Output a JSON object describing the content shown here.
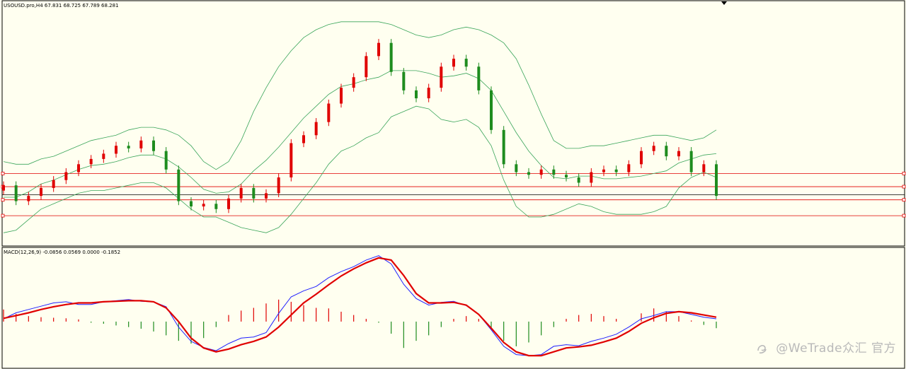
{
  "main_pane": {
    "symbol_label": "USOUSD.pro,H4",
    "ohlc_label": "67.831 68.725 67.789 68.281"
  },
  "macd_pane": {
    "label": "MACD(12,26,9) -0.0856 0.0569 0.0000 -0.1852"
  },
  "watermark": "@WeTrade众汇 官方",
  "colors": {
    "background": "#fffff0",
    "bull_candle": "#e00000",
    "bear_candle": "#1e8c1e",
    "bollinger": "#3aa55a",
    "level_lines": "#e00000",
    "price_line": "#000000",
    "macd_line": "#2020ff",
    "signal_line": "#e00000",
    "hist_positive": "#e00000",
    "hist_negative": "#1e8c1e"
  },
  "chart_data": [
    {
      "type": "candlestick",
      "series": [
        {
          "name": "price",
          "y": [
            68.1,
            67.5,
            67.7,
            68.0,
            68.3,
            68.6,
            68.9,
            69.1,
            69.3,
            69.6,
            69.5,
            69.8,
            69.4,
            68.7,
            67.5,
            67.3,
            67.4,
            67.2,
            67.6,
            68.0,
            67.6,
            67.8,
            68.4,
            69.7,
            70.0,
            70.5,
            71.2,
            71.8,
            72.2,
            73.0,
            73.5,
            72.4,
            71.7,
            71.4,
            71.8,
            72.6,
            72.9,
            72.6,
            71.7,
            70.2,
            68.9,
            68.6,
            68.5,
            68.7,
            68.5,
            68.4,
            68.2,
            68.6,
            68.7,
            68.6,
            68.9,
            69.4,
            69.6,
            69.2,
            69.4,
            68.6,
            68.9,
            67.7
          ]
        },
        {
          "name": "bollinger_upper",
          "y": [
            69.0,
            68.9,
            68.9,
            69.1,
            69.2,
            69.4,
            69.6,
            69.8,
            69.9,
            70.0,
            70.2,
            70.3,
            70.3,
            70.2,
            70.0,
            69.6,
            69.0,
            68.7,
            69.0,
            69.8,
            70.9,
            71.8,
            72.6,
            73.2,
            73.7,
            74.0,
            74.2,
            74.3,
            74.3,
            74.3,
            74.3,
            74.2,
            74.0,
            73.8,
            73.7,
            73.8,
            74.0,
            74.1,
            74.0,
            73.8,
            73.5,
            72.9,
            71.9,
            70.8,
            69.8,
            69.5,
            69.5,
            69.6,
            69.6,
            69.7,
            69.8,
            69.9,
            70.0,
            70.0,
            69.9,
            69.8,
            69.9,
            70.2
          ]
        },
        {
          "name": "bollinger_lower",
          "y": [
            66.3,
            66.4,
            66.8,
            67.2,
            67.4,
            67.6,
            67.8,
            67.9,
            67.9,
            68.0,
            68.1,
            68.2,
            68.2,
            68.0,
            67.6,
            67.2,
            66.9,
            66.9,
            66.7,
            66.5,
            66.4,
            66.3,
            66.5,
            67.0,
            67.6,
            68.2,
            68.9,
            69.4,
            69.6,
            69.9,
            70.1,
            70.7,
            70.9,
            71.1,
            71.0,
            70.6,
            70.5,
            70.6,
            70.3,
            69.6,
            68.3,
            67.3,
            66.9,
            66.9,
            67.0,
            67.2,
            67.4,
            67.3,
            67.1,
            67.0,
            67.0,
            67.0,
            67.1,
            67.3,
            68.0,
            68.4,
            68.6,
            68.4
          ]
        }
      ],
      "levels": [
        68.55,
        68.05,
        67.55,
        66.95
      ],
      "current_price": 67.74,
      "ylim": [
        65.8,
        75.1
      ],
      "grid": false
    },
    {
      "type": "line",
      "series": [
        {
          "name": "MACD",
          "y": [
            0.05,
            0.16,
            0.22,
            0.28,
            0.34,
            0.36,
            0.31,
            0.31,
            0.36,
            0.38,
            0.4,
            0.37,
            0.36,
            0.27,
            -0.1,
            -0.36,
            -0.47,
            -0.53,
            -0.4,
            -0.3,
            -0.28,
            -0.2,
            0.15,
            0.45,
            0.56,
            0.64,
            0.8,
            0.91,
            1.0,
            1.12,
            1.2,
            1.05,
            0.68,
            0.42,
            0.3,
            0.35,
            0.37,
            0.29,
            0.13,
            -0.15,
            -0.45,
            -0.6,
            -0.62,
            -0.6,
            -0.45,
            -0.42,
            -0.44,
            -0.36,
            -0.3,
            -0.23,
            -0.1,
            0.05,
            0.11,
            0.18,
            0.18,
            0.13,
            0.08,
            0.05
          ]
        },
        {
          "name": "signal",
          "y": [
            0.06,
            0.11,
            0.16,
            0.22,
            0.27,
            0.31,
            0.34,
            0.34,
            0.36,
            0.37,
            0.38,
            0.38,
            0.36,
            0.25,
            0.0,
            -0.3,
            -0.48,
            -0.55,
            -0.5,
            -0.42,
            -0.36,
            -0.28,
            -0.1,
            0.12,
            0.34,
            0.5,
            0.67,
            0.83,
            0.96,
            1.07,
            1.16,
            1.12,
            0.84,
            0.51,
            0.34,
            0.34,
            0.35,
            0.3,
            0.13,
            -0.12,
            -0.38,
            -0.55,
            -0.62,
            -0.62,
            -0.55,
            -0.48,
            -0.46,
            -0.43,
            -0.37,
            -0.3,
            -0.18,
            -0.03,
            0.07,
            0.15,
            0.18,
            0.16,
            0.12,
            0.08
          ]
        },
        {
          "name": "histogram",
          "y": [
            0.22,
            0.14,
            0.1,
            0.08,
            0.07,
            0.06,
            0.04,
            -0.02,
            -0.04,
            -0.07,
            -0.1,
            -0.13,
            -0.18,
            -0.25,
            -0.35,
            -0.4,
            -0.3,
            -0.1,
            0.12,
            0.2,
            0.25,
            0.33,
            0.4,
            0.36,
            0.3,
            0.25,
            0.24,
            0.18,
            0.12,
            0.05,
            -0.02,
            -0.22,
            -0.48,
            -0.35,
            -0.25,
            -0.1,
            0.05,
            0.1,
            0.05,
            -0.12,
            -0.35,
            -0.45,
            -0.38,
            -0.25,
            -0.1,
            0.05,
            0.12,
            0.14,
            0.1,
            0.05,
            0.0,
            0.15,
            0.24,
            0.18,
            0.1,
            0.02,
            -0.06,
            -0.12
          ]
        }
      ],
      "ylim": [
        -0.85,
        1.35
      ],
      "grid": false
    }
  ]
}
